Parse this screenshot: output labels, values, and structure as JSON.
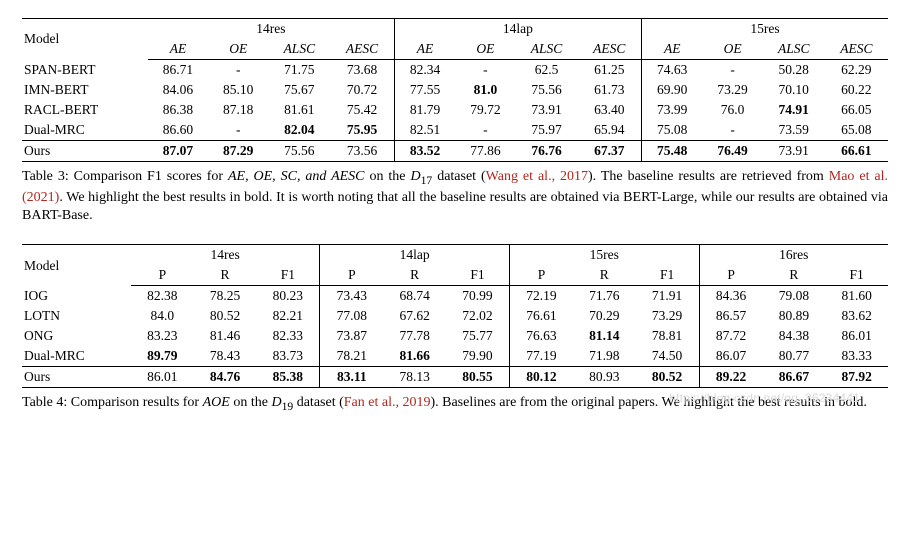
{
  "table3": {
    "model_header": "Model",
    "groups": [
      "14res",
      "14lap",
      "15res"
    ],
    "sub_headers": [
      "AE",
      "OE",
      "ALSC",
      "AESC"
    ],
    "rows": [
      {
        "model": "SPAN-BERT",
        "cells": [
          "86.71",
          "-",
          "71.75",
          "73.68",
          "82.34",
          "-",
          "62.5",
          "61.25",
          "74.63",
          "-",
          "50.28",
          "62.29"
        ],
        "bold": [
          0,
          0,
          0,
          0,
          0,
          0,
          0,
          0,
          0,
          0,
          0,
          0
        ]
      },
      {
        "model": "IMN-BERT",
        "cells": [
          "84.06",
          "85.10",
          "75.67",
          "70.72",
          "77.55",
          "81.0",
          "75.56",
          "61.73",
          "69.90",
          "73.29",
          "70.10",
          "60.22"
        ],
        "bold": [
          0,
          0,
          0,
          0,
          0,
          1,
          0,
          0,
          0,
          0,
          0,
          0
        ]
      },
      {
        "model": "RACL-BERT",
        "cells": [
          "86.38",
          "87.18",
          "81.61",
          "75.42",
          "81.79",
          "79.72",
          "73.91",
          "63.40",
          "73.99",
          "76.0",
          "74.91",
          "66.05"
        ],
        "bold": [
          0,
          0,
          0,
          0,
          0,
          0,
          0,
          0,
          0,
          0,
          1,
          0
        ]
      },
      {
        "model": "Dual-MRC",
        "cells": [
          "86.60",
          "-",
          "82.04",
          "75.95",
          "82.51",
          "-",
          "75.97",
          "65.94",
          "75.08",
          "-",
          "73.59",
          "65.08"
        ],
        "bold": [
          0,
          0,
          1,
          1,
          0,
          0,
          0,
          0,
          0,
          0,
          0,
          0
        ]
      },
      {
        "model": "Ours",
        "cells": [
          "87.07",
          "87.29",
          "75.56",
          "73.56",
          "83.52",
          "77.86",
          "76.76",
          "67.37",
          "75.48",
          "76.49",
          "73.91",
          "66.61"
        ],
        "bold": [
          1,
          1,
          0,
          0,
          1,
          0,
          1,
          1,
          1,
          1,
          0,
          1
        ]
      }
    ],
    "caption_prefix": "Table 3: Comparison F1 scores for ",
    "caption_tasks": "AE, OE, SC, and AESC",
    "caption_mid1": " on the ",
    "caption_dataset": "D",
    "caption_dataset_sub": "17",
    "caption_mid2": " dataset (",
    "caption_ref1": "Wang et al., 2017",
    "caption_mid3": "). The baseline results are retrieved from ",
    "caption_ref2": "Mao et al. (2021)",
    "caption_tail": ". We highlight the best results in bold. It is worth noting that all the baseline results are obtained via BERT-Large, while our results are obtained via BART-Base."
  },
  "table4": {
    "model_header": "Model",
    "groups": [
      "14res",
      "14lap",
      "15res",
      "16res"
    ],
    "sub_headers": [
      "P",
      "R",
      "F1"
    ],
    "rows": [
      {
        "model": "IOG",
        "cells": [
          "82.38",
          "78.25",
          "80.23",
          "73.43",
          "68.74",
          "70.99",
          "72.19",
          "71.76",
          "71.91",
          "84.36",
          "79.08",
          "81.60"
        ],
        "bold": [
          0,
          0,
          0,
          0,
          0,
          0,
          0,
          0,
          0,
          0,
          0,
          0
        ]
      },
      {
        "model": "LOTN",
        "cells": [
          "84.0",
          "80.52",
          "82.21",
          "77.08",
          "67.62",
          "72.02",
          "76.61",
          "70.29",
          "73.29",
          "86.57",
          "80.89",
          "83.62"
        ],
        "bold": [
          0,
          0,
          0,
          0,
          0,
          0,
          0,
          0,
          0,
          0,
          0,
          0
        ]
      },
      {
        "model": "ONG",
        "cells": [
          "83.23",
          "81.46",
          "82.33",
          "73.87",
          "77.78",
          "75.77",
          "76.63",
          "81.14",
          "78.81",
          "87.72",
          "84.38",
          "86.01"
        ],
        "bold": [
          0,
          0,
          0,
          0,
          0,
          0,
          0,
          1,
          0,
          0,
          0,
          0
        ]
      },
      {
        "model": "Dual-MRC",
        "cells": [
          "89.79",
          "78.43",
          "83.73",
          "78.21",
          "81.66",
          "79.90",
          "77.19",
          "71.98",
          "74.50",
          "86.07",
          "80.77",
          "83.33"
        ],
        "bold": [
          1,
          0,
          0,
          0,
          1,
          0,
          0,
          0,
          0,
          0,
          0,
          0
        ]
      },
      {
        "model": "Ours",
        "cells": [
          "86.01",
          "84.76",
          "85.38",
          "83.11",
          "78.13",
          "80.55",
          "80.12",
          "80.93",
          "80.52",
          "89.22",
          "86.67",
          "87.92"
        ],
        "bold": [
          0,
          1,
          1,
          1,
          0,
          1,
          1,
          0,
          1,
          1,
          1,
          1
        ]
      }
    ],
    "caption_prefix": "Table 4: Comparison results for ",
    "caption_task": "AOE",
    "caption_mid1": " on the ",
    "caption_dataset": "D",
    "caption_dataset_sub": "19",
    "caption_mid2": " dataset (",
    "caption_ref1": "Fan et al., 2019",
    "caption_tail": "). Baselines are from the original papers. We highlight the best results in bold."
  },
  "watermark": "https://blog.csdn.net/qq_36234441"
}
